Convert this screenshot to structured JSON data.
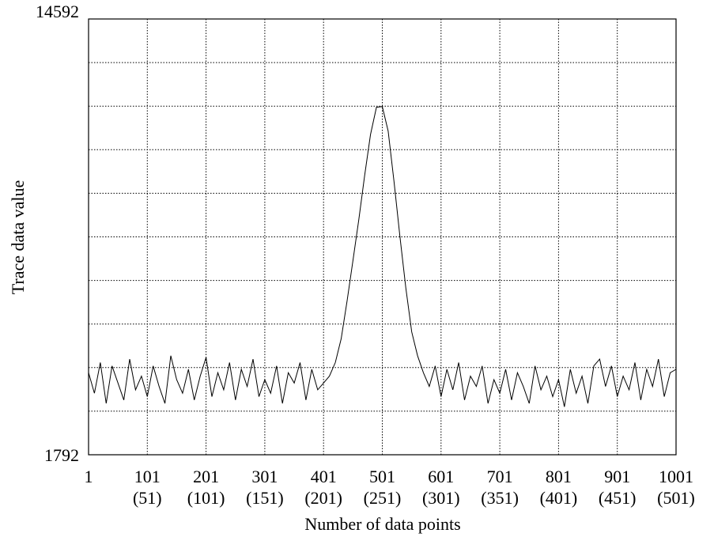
{
  "chart_data": {
    "type": "line",
    "title": "",
    "xlabel": "Number of data points",
    "ylabel": "Trace data value",
    "xlim": [
      1,
      1001
    ],
    "ylim": [
      1792,
      14592
    ],
    "grid": true,
    "x_tick_labels": [
      {
        "value": 1,
        "top": "1",
        "bottom": ""
      },
      {
        "value": 101,
        "top": "101",
        "bottom": "(51)"
      },
      {
        "value": 201,
        "top": "201",
        "bottom": "(101)"
      },
      {
        "value": 301,
        "top": "301",
        "bottom": "(151)"
      },
      {
        "value": 401,
        "top": "401",
        "bottom": "(201)"
      },
      {
        "value": 501,
        "top": "501",
        "bottom": "(251)"
      },
      {
        "value": 601,
        "top": "601",
        "bottom": "(301)"
      },
      {
        "value": 701,
        "top": "701",
        "bottom": "(351)"
      },
      {
        "value": 801,
        "top": "801",
        "bottom": "(401)"
      },
      {
        "value": 901,
        "top": "901",
        "bottom": "(451)"
      },
      {
        "value": 1001,
        "top": "1001",
        "bottom": "(501)"
      }
    ],
    "y_tick_labels": [
      {
        "value": 14592,
        "label": "14592"
      },
      {
        "value": 1792,
        "label": "1792"
      }
    ],
    "y_gridlines": [
      13312,
      12032,
      10752,
      9472,
      8192,
      6912,
      5632,
      4352,
      3072
    ],
    "series": [
      {
        "x": [
          1,
          11,
          21,
          31,
          41,
          51,
          61,
          71,
          81,
          91,
          101,
          111,
          121,
          131,
          141,
          151,
          161,
          171,
          181,
          191,
          201,
          211,
          221,
          231,
          241,
          251,
          261,
          271,
          281,
          291,
          301,
          311,
          321,
          331,
          341,
          351,
          361,
          371,
          381,
          391,
          401,
          411,
          421,
          431,
          441,
          451,
          461,
          471,
          481,
          491,
          501,
          511,
          521,
          531,
          541,
          551,
          561,
          571,
          581,
          591,
          601,
          611,
          621,
          631,
          641,
          651,
          661,
          671,
          681,
          691,
          701,
          711,
          721,
          731,
          741,
          751,
          761,
          771,
          781,
          791,
          801,
          811,
          821,
          831,
          841,
          851,
          861,
          871,
          881,
          891,
          901,
          911,
          921,
          931,
          941,
          951,
          961,
          971,
          981,
          991,
          1001
        ],
        "y": [
          4200,
          3600,
          4500,
          3300,
          4400,
          3900,
          3400,
          4600,
          3700,
          4100,
          3500,
          4400,
          3800,
          3300,
          4700,
          4000,
          3600,
          4300,
          3400,
          4100,
          4650,
          3500,
          4200,
          3700,
          4500,
          3400,
          4300,
          3800,
          4600,
          3500,
          4000,
          3600,
          4400,
          3300,
          4200,
          3900,
          4500,
          3400,
          4300,
          3700,
          3900,
          4100,
          4500,
          5200,
          6300,
          7500,
          8700,
          10000,
          11200,
          12000,
          12020,
          11300,
          9800,
          8200,
          6700,
          5400,
          4700,
          4200,
          3800,
          4400,
          3500,
          4300,
          3700,
          4500,
          3400,
          4100,
          3800,
          4400,
          3300,
          4000,
          3600,
          4300,
          3400,
          4200,
          3800,
          3300,
          4400,
          3700,
          4100,
          3500,
          4000,
          3200,
          4300,
          3600,
          4100,
          3300,
          4400,
          4600,
          3800,
          4400,
          3500,
          4100,
          3700,
          4500,
          3400,
          4300,
          3800,
          4600,
          3500,
          4200,
          4300
        ]
      }
    ]
  }
}
